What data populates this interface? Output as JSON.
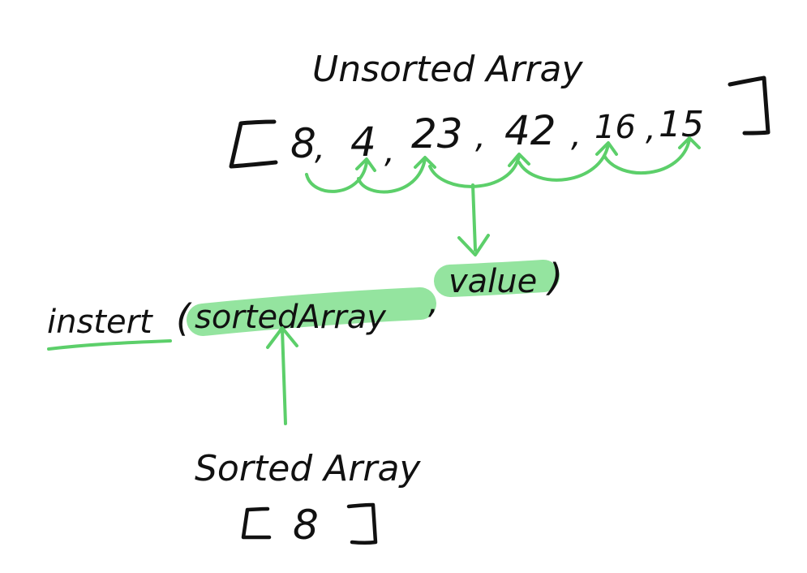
{
  "colors": {
    "ink": "#111111",
    "accent": "#5ccf6a",
    "highlight": "#8ee39a"
  },
  "unsorted": {
    "heading": "Unsorted Array",
    "open_bracket": "[",
    "close_bracket": "]",
    "values": [
      "8",
      "4",
      "23",
      "42",
      "16",
      "15"
    ],
    "separator": ","
  },
  "call": {
    "function_name": "instert",
    "open_paren": "(",
    "arg1": "sortedArray",
    "comma": ",",
    "arg2": "value",
    "close_paren": ")"
  },
  "sorted": {
    "heading": "Sorted Array",
    "open_bracket": "[",
    "value": "8",
    "close_bracket": "]"
  }
}
